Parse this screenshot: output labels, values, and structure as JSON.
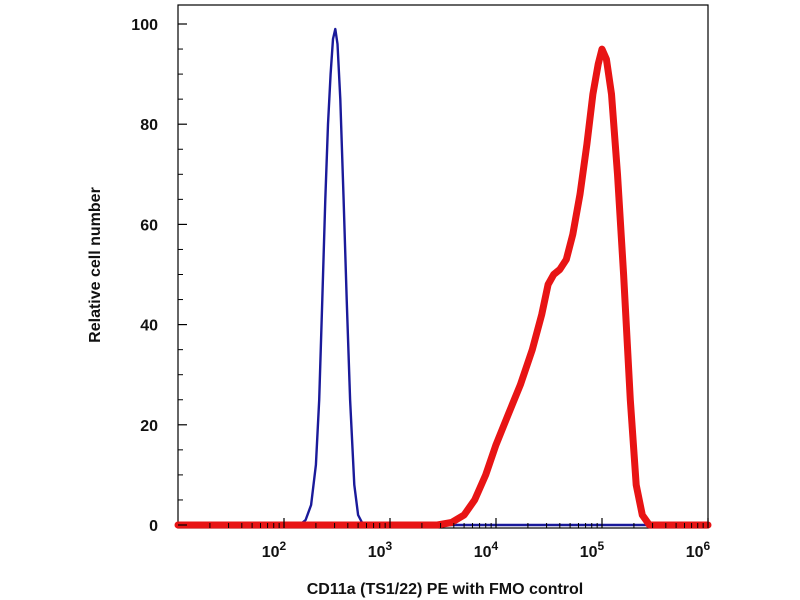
{
  "chart_data": {
    "type": "line",
    "title": "",
    "xlabel": "CD11a (TS1/22) PE with FMO control",
    "ylabel": "Relative cell number",
    "x_scale": "log",
    "xlim": [
      10,
      1000000
    ],
    "ylim": [
      0,
      105
    ],
    "x_ticks": [
      {
        "value": 100,
        "base": "10",
        "exp": "2"
      },
      {
        "value": 1000,
        "base": "10",
        "exp": "3"
      },
      {
        "value": 10000,
        "base": "10",
        "exp": "4"
      },
      {
        "value": 100000,
        "base": "10",
        "exp": "5"
      },
      {
        "value": 1000000,
        "base": "10",
        "exp": "6"
      }
    ],
    "y_ticks": [
      "0",
      "20",
      "40",
      "60",
      "80",
      "100"
    ],
    "grid": false,
    "series": [
      {
        "color": "#1a1a9a",
        "points": [
          [
            10,
            0
          ],
          [
            140,
            0
          ],
          [
            160,
            1
          ],
          [
            180,
            4
          ],
          [
            200,
            12
          ],
          [
            215,
            25
          ],
          [
            230,
            45
          ],
          [
            245,
            65
          ],
          [
            260,
            80
          ],
          [
            275,
            90
          ],
          [
            290,
            97
          ],
          [
            305,
            99
          ],
          [
            320,
            96
          ],
          [
            340,
            85
          ],
          [
            365,
            65
          ],
          [
            390,
            45
          ],
          [
            420,
            25
          ],
          [
            460,
            8
          ],
          [
            500,
            2
          ],
          [
            560,
            0
          ],
          [
            1000000,
            0
          ]
        ]
      },
      {
        "color": "#e81414",
        "points": [
          [
            10,
            0
          ],
          [
            2800,
            0
          ],
          [
            3800,
            0.5
          ],
          [
            5000,
            2
          ],
          [
            6300,
            5
          ],
          [
            8000,
            10
          ],
          [
            10000,
            16
          ],
          [
            13000,
            22
          ],
          [
            17000,
            28
          ],
          [
            22000,
            35
          ],
          [
            27000,
            42
          ],
          [
            31000,
            48
          ],
          [
            35000,
            50
          ],
          [
            40000,
            51
          ],
          [
            46000,
            53
          ],
          [
            53000,
            58
          ],
          [
            62000,
            66
          ],
          [
            72000,
            76
          ],
          [
            82000,
            86
          ],
          [
            92000,
            92
          ],
          [
            100000,
            95
          ],
          [
            110000,
            93
          ],
          [
            123000,
            86
          ],
          [
            140000,
            70
          ],
          [
            160000,
            50
          ],
          [
            185000,
            25
          ],
          [
            210000,
            8
          ],
          [
            240000,
            2
          ],
          [
            280000,
            0
          ],
          [
            1000000,
            0
          ]
        ]
      }
    ]
  }
}
